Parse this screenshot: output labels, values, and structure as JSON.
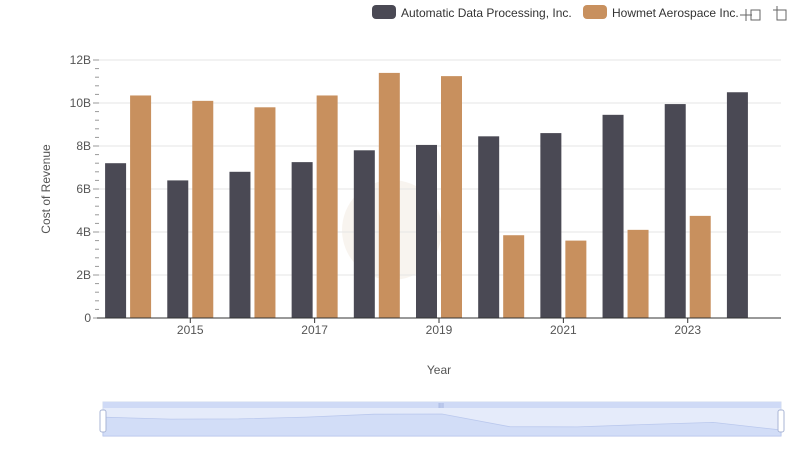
{
  "chart_data": {
    "type": "bar",
    "xlabel": "Year",
    "ylabel": "Cost of Revenue",
    "x_ticks": [
      "2015",
      "2017",
      "2019",
      "2021",
      "2023"
    ],
    "y_ticks": [
      "0",
      "2B",
      "4B",
      "6B",
      "8B",
      "10B",
      "12B"
    ],
    "ylim": [
      0,
      12
    ],
    "grid": true,
    "legend_position": "top-right",
    "categories": [
      "2014",
      "2015",
      "2016",
      "2017",
      "2018",
      "2019",
      "2020",
      "2021",
      "2022",
      "2023",
      "2024"
    ],
    "series": [
      {
        "name": "Automatic Data Processing, Inc.",
        "color": "#4a4954",
        "values": [
          7.2,
          6.4,
          6.8,
          7.25,
          7.8,
          8.05,
          8.45,
          8.6,
          9.45,
          9.95,
          10.5
        ]
      },
      {
        "name": "Howmet Aerospace Inc.",
        "color": "#c8905e",
        "values": [
          10.35,
          10.1,
          9.8,
          10.35,
          11.4,
          11.25,
          3.85,
          3.6,
          4.1,
          4.75,
          null
        ]
      }
    ]
  },
  "toolbar": {
    "zoom_icon": "zoom-icon",
    "reset_icon": "reset-icon"
  }
}
